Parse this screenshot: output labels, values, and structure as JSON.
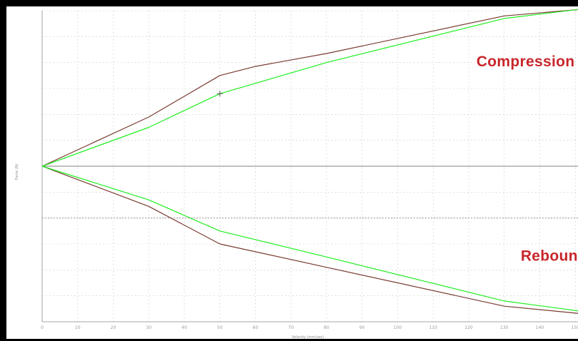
{
  "chart_data": {
    "type": "line",
    "xlabel": "Velocity (mm/sec)",
    "ylabel": "Force (N)",
    "xlim": [
      0,
      160
    ],
    "ylim": [
      -12,
      12
    ],
    "x_ticks": [
      0,
      10,
      20,
      30,
      40,
      50,
      60,
      70,
      80,
      90,
      100,
      110,
      120,
      130,
      140,
      150
    ],
    "grid": true,
    "colors": {
      "curve_a": "#7a3b32",
      "curve_b": "#22ee22",
      "grid": "#bdbdbd",
      "accent": "#c7262b"
    },
    "annotations": [
      {
        "text": "Compression",
        "x": 136,
        "y": 8.0
      },
      {
        "text": "Rebound",
        "x": 144,
        "y": -7.0
      }
    ],
    "series": [
      {
        "values": [
          {
            "x": 0,
            "y": 0
          },
          {
            "x": 30,
            "y": 3.8
          },
          {
            "x": 50,
            "y": 7.0
          },
          {
            "x": 60,
            "y": 7.7
          },
          {
            "x": 80,
            "y": 8.7
          },
          {
            "x": 130,
            "y": 11.6
          },
          {
            "x": 160,
            "y": 12.3
          }
        ]
      },
      {
        "values": [
          {
            "x": 0,
            "y": 0
          },
          {
            "x": 30,
            "y": 3.0
          },
          {
            "x": 50,
            "y": 5.6
          },
          {
            "x": 80,
            "y": 8.0
          },
          {
            "x": 130,
            "y": 11.4
          },
          {
            "x": 160,
            "y": 12.4
          }
        ]
      },
      {
        "values": [
          {
            "x": 0,
            "y": 0
          },
          {
            "x": 30,
            "y": -3.1
          },
          {
            "x": 50,
            "y": -6.0
          },
          {
            "x": 80,
            "y": -7.8
          },
          {
            "x": 130,
            "y": -10.8
          },
          {
            "x": 160,
            "y": -11.6
          }
        ]
      },
      {
        "values": [
          {
            "x": 0,
            "y": 0
          },
          {
            "x": 30,
            "y": -2.6
          },
          {
            "x": 50,
            "y": -5.0
          },
          {
            "x": 80,
            "y": -7.0
          },
          {
            "x": 130,
            "y": -10.4
          },
          {
            "x": 160,
            "y": -11.5
          }
        ]
      }
    ],
    "mirror_marker": {
      "x": 50,
      "y": 5.6
    }
  }
}
